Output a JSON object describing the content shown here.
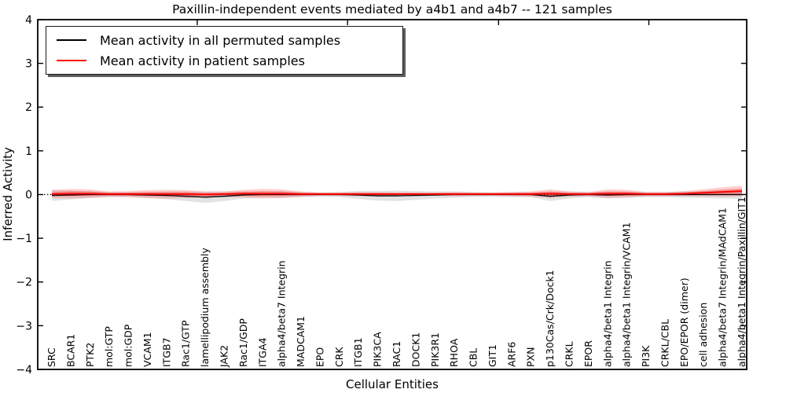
{
  "title": "Paxillin-independent events mediated by a4b1 and a4b7 -- 121 samples",
  "colors": {
    "permuted_line": "#000000",
    "patient_line": "#ff0000",
    "permuted_band": "rgba(0,0,0,0.11)",
    "patient_band_outer": "rgba(255,0,0,0.18)",
    "patient_band_inner": "rgba(255,0,0,0.28)",
    "axis": "#000000"
  },
  "chart_data": {
    "type": "line",
    "title": "Paxillin-independent events mediated by a4b1 and a4b7 -- 121 samples",
    "xlabel": "Cellular Entities",
    "ylabel": "Inferred Activity",
    "ylim": [
      -4,
      4
    ],
    "grid": false,
    "legend_position": "upper left",
    "zero_line": {
      "style": "dotted",
      "y": 0
    },
    "y_tick_values": [
      4,
      3,
      2,
      1,
      0,
      -1,
      -2,
      -3,
      -4
    ],
    "y_tick_labels": [
      "4",
      "3",
      "2",
      "1",
      "0",
      "−1",
      "−2",
      "−3",
      "−4"
    ],
    "categories": [
      "SRC",
      "BCAR1",
      "PTK2",
      "mol:GTP",
      "mol:GDP",
      "VCAM1",
      "ITGB7",
      "Rac1/GTP",
      "lamellipodium assembly",
      "JAK2",
      "Rac1/GDP",
      "ITGA4",
      "alpha4/beta7 Integrin",
      "MADCAM1",
      "EPO",
      "CRK",
      "ITGB1",
      "PIK3CA",
      "RAC1",
      "DOCK1",
      "PIK3R1",
      "RHOA",
      "CBL",
      "GIT1",
      "ARF6",
      "PXN",
      "p130Cas/Crk/Dock1",
      "CRKL",
      "EPOR",
      "alpha4/beta1 Integrin",
      "alpha4/beta1 Integrin/VCAM1",
      "PI3K",
      "CRKL/CBL",
      "EPO/EPOR (dimer)",
      "cell adhesion",
      "alpha4/beta7 Integrin/MAdCAM1",
      "alpha4/beta1 Integrin/Paxillin/GIT1"
    ],
    "series": [
      {
        "name": "Mean activity in all permuted samples",
        "color": "#000000",
        "mean": [
          -0.02,
          -0.01,
          0,
          0,
          0,
          -0.01,
          -0.02,
          -0.04,
          -0.06,
          -0.04,
          -0.01,
          0,
          0,
          0,
          0,
          0,
          -0.01,
          -0.03,
          -0.03,
          -0.02,
          -0.01,
          0,
          0,
          0,
          0,
          0,
          -0.04,
          -0.01,
          0,
          -0.01,
          0,
          0,
          0,
          0,
          0,
          0,
          0
        ],
        "std": [
          0.13,
          0.1,
          0.08,
          0.06,
          0.06,
          0.07,
          0.09,
          0.11,
          0.13,
          0.11,
          0.08,
          0.07,
          0.08,
          0.06,
          0.05,
          0.06,
          0.09,
          0.11,
          0.12,
          0.1,
          0.08,
          0.07,
          0.06,
          0.05,
          0.06,
          0.06,
          0.11,
          0.08,
          0.06,
          0.08,
          0.07,
          0.06,
          0.06,
          0.07,
          0.08,
          0.09,
          0.1
        ]
      },
      {
        "name": "Mean activity in patient samples",
        "color": "#ff0000",
        "mean": [
          0.01,
          0.02,
          0.02,
          0.01,
          0.01,
          0.01,
          0.01,
          0.01,
          0,
          0.01,
          0.02,
          0.02,
          0.02,
          0.01,
          0.01,
          0.01,
          0.01,
          0.01,
          0.01,
          0.01,
          0.01,
          0.01,
          0.01,
          0.01,
          0.01,
          0.01,
          0.02,
          0.01,
          0.01,
          0.02,
          0.02,
          0.01,
          0.01,
          0.02,
          0.04,
          0.06,
          0.08
        ],
        "std": [
          0.09,
          0.11,
          0.1,
          0.06,
          0.07,
          0.09,
          0.1,
          0.09,
          0.07,
          0.06,
          0.09,
          0.11,
          0.1,
          0.06,
          0.04,
          0.04,
          0.05,
          0.05,
          0.04,
          0.04,
          0.04,
          0.05,
          0.04,
          0.04,
          0.05,
          0.06,
          0.1,
          0.06,
          0.05,
          0.1,
          0.09,
          0.05,
          0.05,
          0.06,
          0.08,
          0.11,
          0.12
        ]
      }
    ]
  }
}
